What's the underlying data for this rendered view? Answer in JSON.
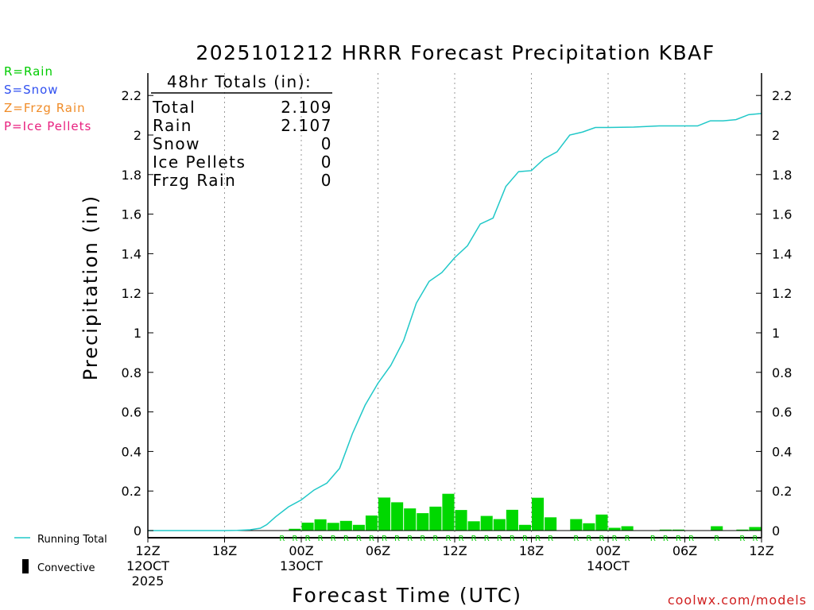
{
  "chart_data": {
    "type": "bar",
    "title": "2025101212 HRRR Forecast Precipitation KBAF",
    "xlabel": "Forecast Time (UTC)",
    "ylabel": "Precipitation (in)",
    "ylim": [
      0,
      2.3
    ],
    "y_ticks": [
      0,
      0.2,
      0.4,
      0.6,
      0.8,
      1,
      1.2,
      1.4,
      1.6,
      1.8,
      2,
      2.2
    ],
    "y_tick_labels": [
      "0",
      "0.2",
      "0.4",
      "0.6",
      "0.8",
      "1",
      "1.2",
      "1.4",
      "1.6",
      "1.8",
      "2",
      "2.2"
    ],
    "grid": "vertical dotted",
    "legend_placement": "left",
    "x_ticks": [
      {
        "hour": 0,
        "lines": [
          "12Z",
          "12OCT",
          "2025"
        ]
      },
      {
        "hour": 6,
        "lines": [
          "18Z"
        ]
      },
      {
        "hour": 12,
        "lines": [
          "00Z",
          "13OCT"
        ]
      },
      {
        "hour": 18,
        "lines": [
          "06Z"
        ]
      },
      {
        "hour": 24,
        "lines": [
          "12Z"
        ]
      },
      {
        "hour": 30,
        "lines": [
          "18Z"
        ]
      },
      {
        "hour": 36,
        "lines": [
          "00Z",
          "14OCT"
        ]
      },
      {
        "hour": 42,
        "lines": [
          "06Z"
        ]
      },
      {
        "hour": 48,
        "lines": [
          "12Z"
        ]
      }
    ],
    "hourly_precip": [
      0,
      0,
      0,
      0,
      0,
      0,
      0,
      0,
      0,
      0,
      0.002,
      0.009,
      0.04,
      0.057,
      0.039,
      0.049,
      0.029,
      0.076,
      0.167,
      0.143,
      0.112,
      0.088,
      0.121,
      0.186,
      0.104,
      0.047,
      0.074,
      0.058,
      0.105,
      0.029,
      0.166,
      0.067,
      0,
      0.058,
      0.037,
      0.081,
      0.014,
      0.022,
      0,
      0.002,
      0.005,
      0.005,
      0.002,
      0,
      0.022,
      0,
      0.005,
      0.018
    ],
    "running_total": [
      [
        0,
        0
      ],
      [
        6,
        0
      ],
      [
        7,
        0.001
      ],
      [
        8,
        0.004
      ],
      [
        8.8,
        0.012
      ],
      [
        9.3,
        0.03
      ],
      [
        10,
        0.07
      ],
      [
        11,
        0.12
      ],
      [
        12,
        0.155
      ],
      [
        13,
        0.205
      ],
      [
        14,
        0.24
      ],
      [
        15,
        0.315
      ],
      [
        16,
        0.49
      ],
      [
        17,
        0.635
      ],
      [
        18,
        0.745
      ],
      [
        19,
        0.835
      ],
      [
        20,
        0.96
      ],
      [
        21,
        1.15
      ],
      [
        22,
        1.26
      ],
      [
        23,
        1.305
      ],
      [
        24,
        1.38
      ],
      [
        25,
        1.44
      ],
      [
        26,
        1.55
      ],
      [
        27,
        1.58
      ],
      [
        28,
        1.74
      ],
      [
        29,
        1.815
      ],
      [
        30,
        1.82
      ],
      [
        31,
        1.88
      ],
      [
        32,
        1.915
      ],
      [
        33,
        2.0
      ],
      [
        34,
        2.015
      ],
      [
        35,
        2.038
      ],
      [
        36,
        2.038
      ],
      [
        38,
        2.04
      ],
      [
        40,
        2.046
      ],
      [
        42,
        2.046
      ],
      [
        43,
        2.046
      ],
      [
        44,
        2.072
      ],
      [
        45,
        2.072
      ],
      [
        46,
        2.078
      ],
      [
        47,
        2.103
      ],
      [
        48,
        2.109
      ]
    ],
    "ptype_markers": [
      "R",
      "R",
      "R",
      "R",
      "R",
      "R",
      "R",
      "R",
      "R",
      "R",
      "R",
      "R",
      "R",
      "R",
      "R",
      "R",
      "R",
      "R",
      "R",
      "R",
      "R",
      "R",
      "R",
      "R",
      "R",
      "R",
      "R",
      "R",
      "R",
      "R",
      "R",
      "R",
      "R",
      "R",
      "R",
      "R",
      "R",
      "R",
      "R",
      "R",
      "R",
      "R"
    ],
    "colors": {
      "running_total": "#20C8C8",
      "bars": "#00D800",
      "convective": "#000000",
      "rain": "#00CC00",
      "snow": "#3050F0",
      "frzg_rain": "#F08C28",
      "ice_pellets": "#E8207F"
    }
  },
  "totals_box": {
    "title": "48hr Totals (in):",
    "rows": [
      {
        "label": "Total",
        "value": "2.109"
      },
      {
        "label": "Rain",
        "value": "2.107"
      },
      {
        "label": "Snow",
        "value": "0"
      },
      {
        "label": "Ice Pellets",
        "value": "0"
      },
      {
        "label": "Frzg Rain",
        "value": "0"
      }
    ]
  },
  "ptype_key": [
    {
      "text": "R=Rain",
      "color": "#00CC00"
    },
    {
      "text": "S=Snow",
      "color": "#3050F0"
    },
    {
      "text": "Z=Frzg Rain",
      "color": "#F08C28"
    },
    {
      "text": "P=Ice Pellets",
      "color": "#E8207F"
    }
  ],
  "bottom_legend": {
    "running_total": "Running Total",
    "convective": "Convective"
  },
  "credit": "coolwx.com/models"
}
